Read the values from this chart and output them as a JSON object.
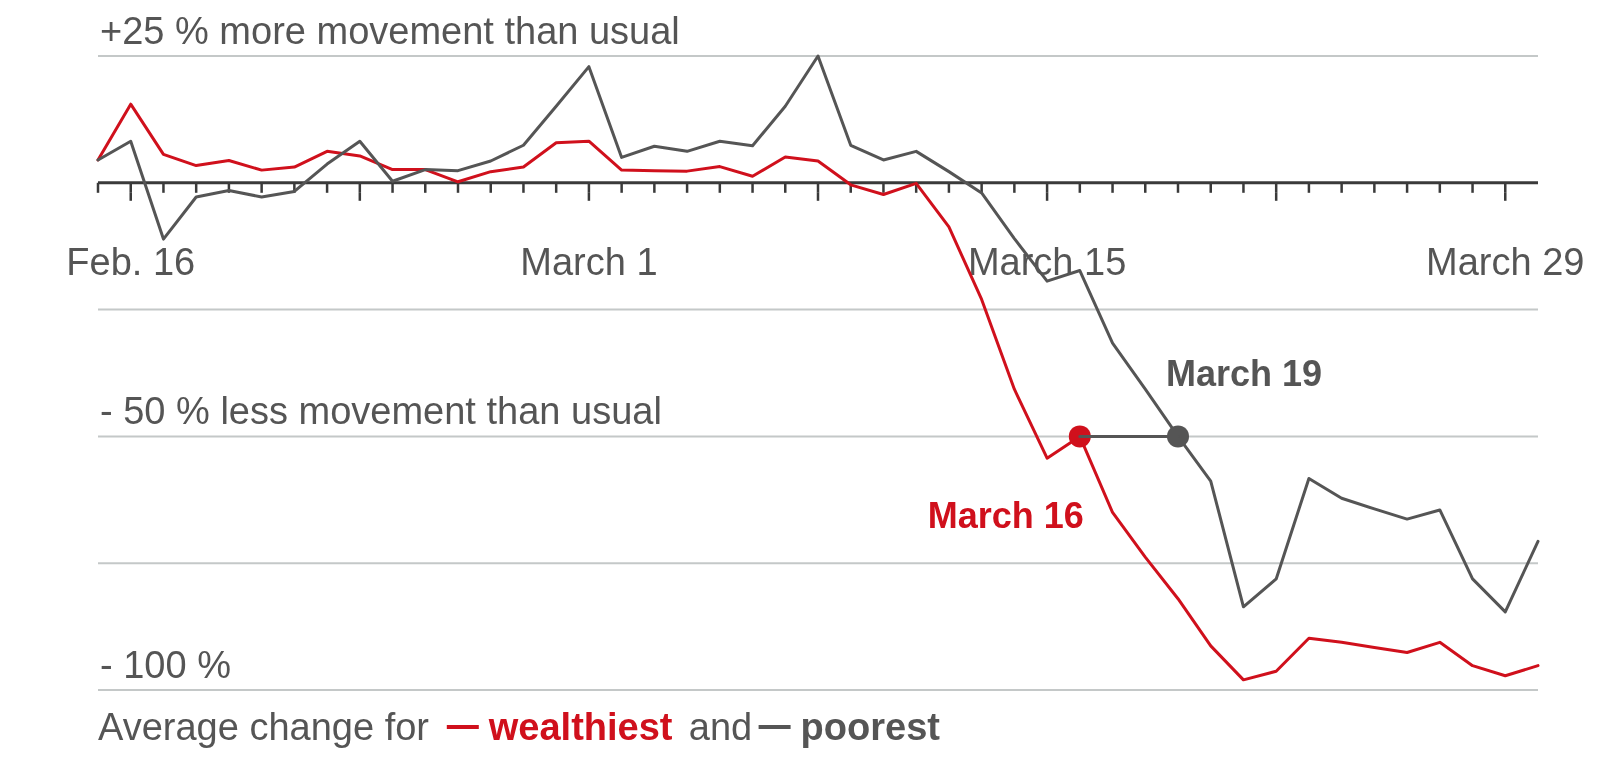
{
  "chart_data": {
    "type": "line",
    "x": [
      "--02-15",
      "--02-16",
      "--02-17",
      "--02-18",
      "--02-19",
      "--02-20",
      "--02-21",
      "--02-22",
      "--02-23",
      "--02-24",
      "--02-25",
      "--02-26",
      "--02-27",
      "--02-28",
      "--02-29",
      "--03-01",
      "--03-02",
      "--03-03",
      "--03-04",
      "--03-05",
      "--03-06",
      "--03-07",
      "--03-08",
      "--03-09",
      "--03-10",
      "--03-11",
      "--03-12",
      "--03-13",
      "--03-14",
      "--03-15",
      "--03-16",
      "--03-17",
      "--03-18",
      "--03-19",
      "--03-20",
      "--03-21",
      "--03-22",
      "--03-23",
      "--03-24",
      "--03-25",
      "--03-26",
      "--03-27",
      "--03-28",
      "--03-29",
      "--03-30"
    ],
    "series": [
      {
        "name": "wealthiest",
        "color": "#d0101c",
        "values": [
          4.5,
          15.5,
          5.6,
          3.4,
          4.4,
          2.5,
          3.1,
          6.2,
          5.3,
          2.6,
          2.6,
          0.2,
          2.2,
          3.1,
          7.9,
          8.2,
          2.5,
          2.4,
          2.3,
          3.2,
          1.3,
          5.1,
          4.3,
          -0.4,
          -2.3,
          -0.1,
          -8.7,
          -23,
          -40.7,
          -54.3,
          -50,
          -65,
          -73.8,
          -82,
          -91.3,
          -98,
          -96.3,
          -89.8,
          -90.6,
          -91.6,
          -92.6,
          -90.6,
          -95.2,
          -97.2,
          -95.2
        ]
      },
      {
        "name": "poorest",
        "color": "#555555",
        "values": [
          4.5,
          8.2,
          -11.1,
          -2.8,
          -1.5,
          -2.8,
          -1.7,
          3.7,
          8.2,
          0.3,
          2.6,
          2.4,
          4.3,
          7.4,
          15.1,
          22.9,
          5,
          7.2,
          6.2,
          8.2,
          7.3,
          15.1,
          25,
          7.4,
          4.5,
          6.2,
          2.2,
          -2,
          -11,
          -19.4,
          -17.3,
          -31.6,
          -40.7,
          -50,
          -58.8,
          -83.6,
          -78.1,
          -58.3,
          -62.2,
          -64.3,
          -66.3,
          -64.5,
          -78.1,
          -84.6,
          -70.7
        ]
      },
      {
        "type": "scatter",
        "x": [
          "--03-16",
          "--03-19"
        ],
        "values": [
          -50,
          -50
        ],
        "colors": [
          "#d0101c",
          "#555555"
        ]
      },
      {
        "type": "line",
        "color": "#555555",
        "x": [
          "--03-16",
          "--03-19"
        ],
        "values": [
          -50,
          -50
        ]
      }
    ],
    "xlim": [
      "--02-15",
      "--03-30"
    ],
    "xticks": [
      {
        "value": "--02-15",
        "label": null
      },
      {
        "value": "--02-16",
        "label": "Feb. 16"
      },
      {
        "value": "--02-17",
        "label": null
      },
      {
        "value": "--02-18",
        "label": null
      },
      {
        "value": "--02-19",
        "label": null
      },
      {
        "value": "--02-20",
        "label": null
      },
      {
        "value": "--02-21",
        "label": null
      },
      {
        "value": "--02-22",
        "label": null
      },
      {
        "value": "--02-23",
        "label": null
      },
      {
        "value": "--02-24",
        "label": null
      },
      {
        "value": "--02-25",
        "label": null
      },
      {
        "value": "--02-26",
        "label": null
      },
      {
        "value": "--02-27",
        "label": null
      },
      {
        "value": "--02-28",
        "label": null
      },
      {
        "value": "--02-29",
        "label": null
      },
      {
        "value": "--03-01",
        "label": "March 1"
      },
      {
        "value": "--03-02",
        "label": null
      },
      {
        "value": "--03-03",
        "label": null
      },
      {
        "value": "--03-04",
        "label": null
      },
      {
        "value": "--03-05",
        "label": null
      },
      {
        "value": "--03-06",
        "label": null
      },
      {
        "value": "--03-07",
        "label": null
      },
      {
        "value": "--03-08",
        "label": null
      },
      {
        "value": "--03-09",
        "label": null
      },
      {
        "value": "--03-10",
        "label": null
      },
      {
        "value": "--03-11",
        "label": null
      },
      {
        "value": "--03-12",
        "label": null
      },
      {
        "value": "--03-13",
        "label": null
      },
      {
        "value": "--03-14",
        "label": null
      },
      {
        "value": "--03-15",
        "label": "March 15"
      },
      {
        "value": "--03-16",
        "label": null
      },
      {
        "value": "--03-17",
        "label": null
      },
      {
        "value": "--03-18",
        "label": null
      },
      {
        "value": "--03-19",
        "label": null
      },
      {
        "value": "--03-20",
        "label": null
      },
      {
        "value": "--03-21",
        "label": null
      },
      {
        "value": "--03-22",
        "label": null
      },
      {
        "value": "--03-23",
        "label": null
      },
      {
        "value": "--03-24",
        "label": null
      },
      {
        "value": "--03-25",
        "label": null
      },
      {
        "value": "--03-26",
        "label": null
      },
      {
        "value": "--03-27",
        "label": null
      },
      {
        "value": "--03-28",
        "label": null
      },
      {
        "value": "--03-29",
        "label": "March 29"
      }
    ],
    "ylim": [
      -100,
      25
    ],
    "yticks": [
      {
        "value": 25,
        "label": "+25 % more movement than usual"
      },
      {
        "value": 0,
        "label": null
      },
      {
        "value": -25,
        "label": null
      },
      {
        "value": -50,
        "label": "- 50 % less movement than usual"
      },
      {
        "value": -75,
        "label": null
      },
      {
        "value": -100,
        "label": "- 100 %"
      }
    ],
    "grid": "y",
    "legend": "bottom",
    "legend_title": "Average change for",
    "annotations": [
      {
        "text": "March 16",
        "x": "--03-16",
        "y": -50
      },
      {
        "text": "March 19",
        "x": "--03-19",
        "y": -50
      },
      "and"
    ]
  }
}
